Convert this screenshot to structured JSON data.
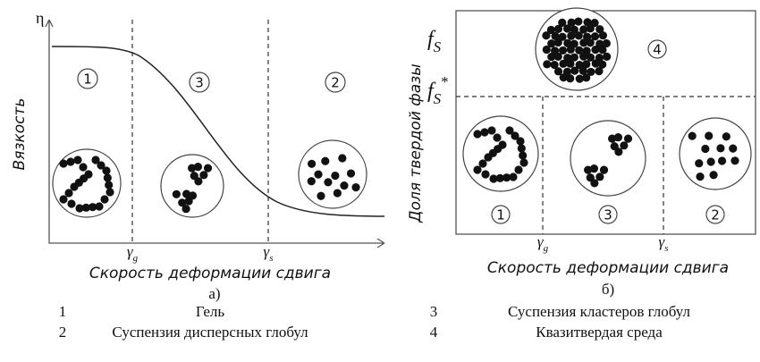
{
  "panel_a": {
    "y_symbol": "η",
    "y_title": "Вязкость",
    "x_ticks": [
      {
        "symbol": "γ",
        "sub": "g"
      },
      {
        "symbol": "γ",
        "sub": "s"
      }
    ],
    "x_title": "Скорость деформации сдвига",
    "regions": [
      "1",
      "3",
      "2"
    ],
    "caption": "а)"
  },
  "panel_b": {
    "y_ticks": [
      {
        "symbol": "f",
        "sub": "S"
      },
      {
        "symbol": "f",
        "sub": "S",
        "sup": "*"
      }
    ],
    "y_title": "Доля твердой фазы",
    "x_ticks": [
      {
        "symbol": "γ",
        "sub": "g"
      },
      {
        "symbol": "γ",
        "sub": "s"
      }
    ],
    "x_title": "Скорость деформации сдвига",
    "regions": [
      "1",
      "3",
      "2",
      "4"
    ],
    "caption": "б)"
  },
  "legend": [
    {
      "number": "1",
      "label": "Гель"
    },
    {
      "number": "3",
      "label": "Суспензия кластеров глобул"
    },
    {
      "number": "2",
      "label": "Суспензия дисперсных глобул"
    },
    {
      "number": "4",
      "label": "Квазитвердая среда"
    }
  ]
}
